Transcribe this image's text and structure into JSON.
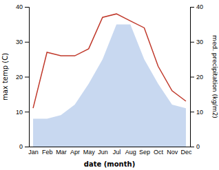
{
  "chart_data": {
    "type": "line",
    "xlabel": "date (month)",
    "ylabel": "max temp (C)",
    "y2label": "med. precipitation (kg/m2)",
    "categories": [
      "Jan",
      "Feb",
      "Mar",
      "Apr",
      "May",
      "Jun",
      "Jul",
      "Aug",
      "Sep",
      "Oct",
      "Nov",
      "Dec"
    ],
    "series": [
      {
        "type": "area",
        "axis": "y2",
        "color": "#c8d8f0",
        "values": [
          8,
          8,
          9,
          12,
          18,
          25,
          35,
          35,
          25,
          18,
          12,
          11
        ]
      },
      {
        "type": "line",
        "color": "#c0392b",
        "values": [
          11,
          27,
          26,
          26,
          28,
          37,
          38,
          36,
          34,
          23,
          16,
          13
        ]
      }
    ],
    "ylim": [
      0,
      40
    ],
    "yticks": [
      0,
      10,
      20,
      30,
      40
    ],
    "y2lim": [
      0,
      40
    ],
    "y2ticks": [
      0,
      10,
      20,
      30,
      40
    ]
  }
}
